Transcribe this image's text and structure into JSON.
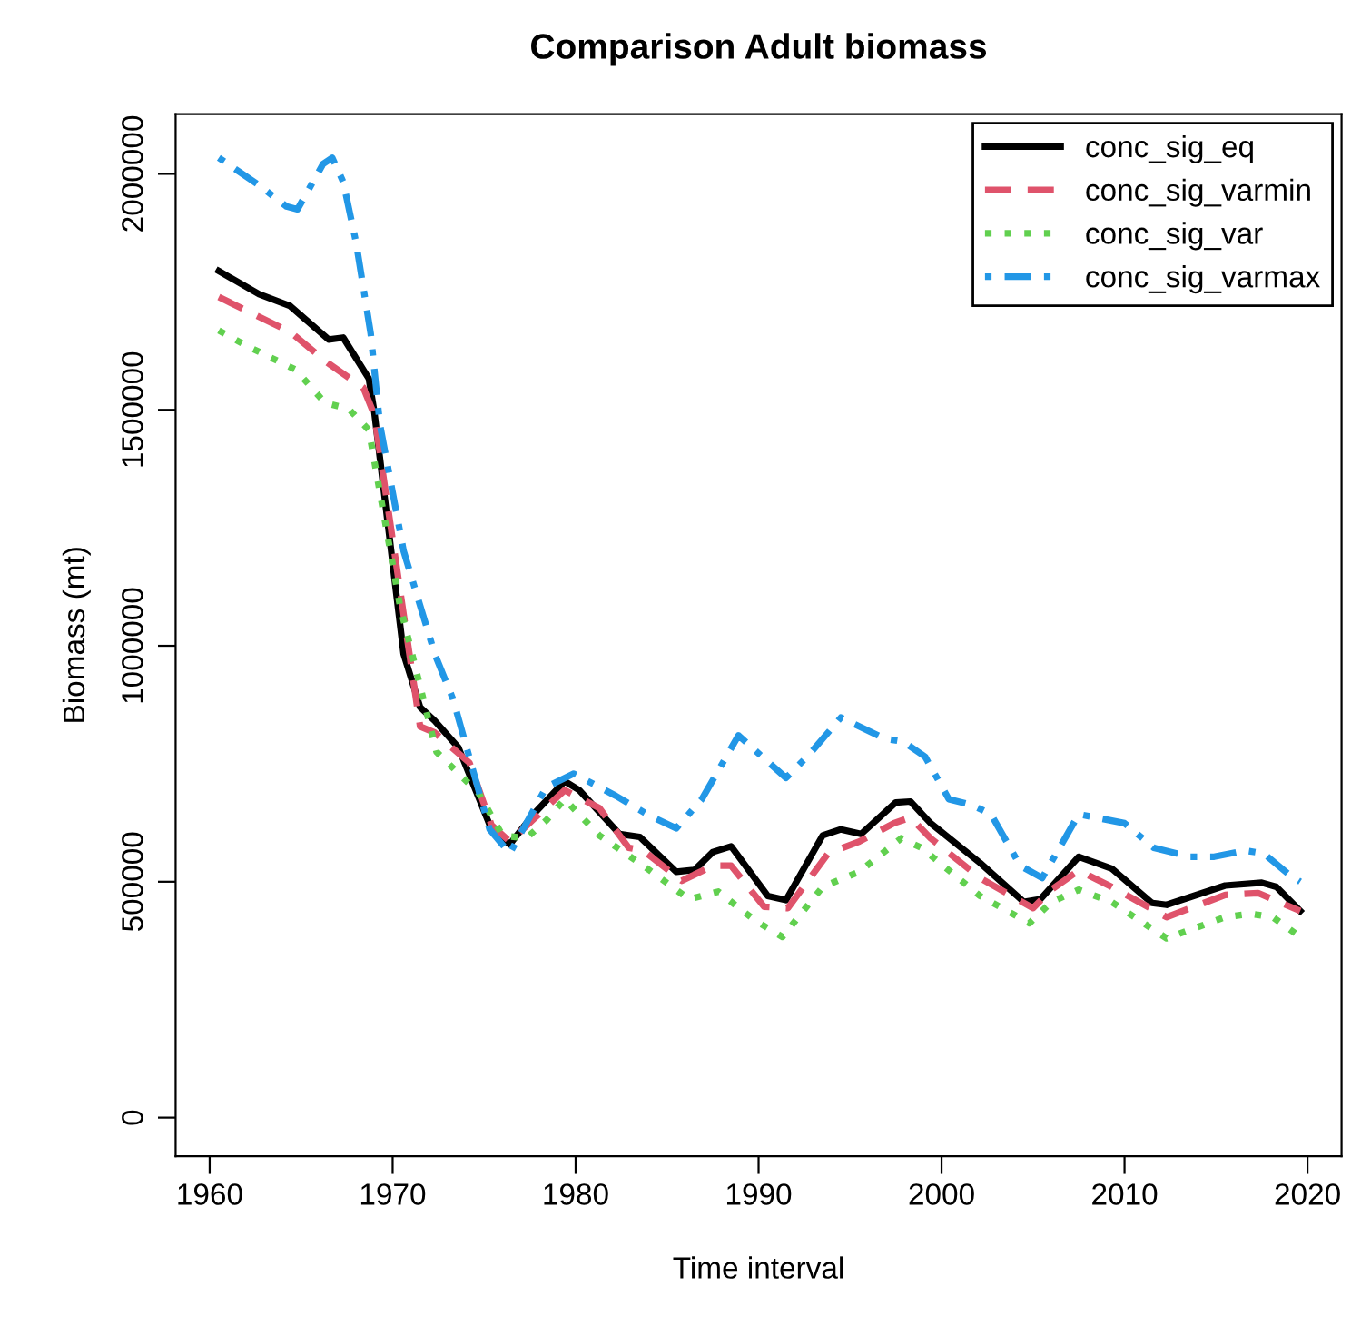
{
  "chart_data": {
    "type": "line",
    "title": "Comparison Adult biomass",
    "xlabel": "Time interval",
    "ylabel": "Biomass (mt)",
    "xlim": [
      1958.14,
      2021.86
    ],
    "ylim": [
      -81800,
      2126800
    ],
    "xticks": [
      1960,
      1970,
      1980,
      1990,
      2000,
      2010,
      2020
    ],
    "yticks": [
      0,
      500000,
      1000000,
      1500000,
      2000000
    ],
    "grid": false,
    "legend": "top right",
    "series": [
      {
        "name": "conc_sig_eq",
        "color": "#000000",
        "line_style": "solid",
        "x": [
          1960.5,
          1962.7,
          1964.4,
          1966.5,
          1967.3,
          1968.7,
          1969.0,
          1970.6,
          1971.5,
          1972.3,
          1973.6,
          1975.4,
          1976.4,
          1977.7,
          1979.4,
          1980.2,
          1982.4,
          1983.5,
          1985.5,
          1986.5,
          1987.5,
          1988.5,
          1990.5,
          1991.5,
          1993.5,
          1994.5,
          1995.6,
          1997.5,
          1998.3,
          1999.4,
          2002.1,
          2004.5,
          2005.4,
          2007.5,
          2009.3,
          2011.5,
          2012.3,
          2015.5,
          2017.5,
          2018.3,
          2019.6
        ],
        "values": [
          1794000,
          1745000,
          1720000,
          1649000,
          1653000,
          1566000,
          1495000,
          983000,
          870000,
          841000,
          784000,
          611000,
          579000,
          643000,
          713000,
          694000,
          601000,
          595000,
          521000,
          525000,
          563000,
          575000,
          470000,
          461000,
          598000,
          611000,
          601000,
          668000,
          670000,
          624000,
          540000,
          457000,
          463000,
          553000,
          528000,
          455000,
          451000,
          492000,
          498000,
          489000,
          438000
        ]
      },
      {
        "name": "conc_sig_varmin",
        "color": "#df536b",
        "line_style": "dashed",
        "x": [
          1960.5,
          1964.4,
          1966.5,
          1968.4,
          1969.0,
          1971.5,
          1972.3,
          1974.2,
          1975.4,
          1976.4,
          1977.8,
          1979.4,
          1981.3,
          1982.9,
          1983.7,
          1985.8,
          1987.5,
          1988.5,
          1990.3,
          1991.6,
          1993.8,
          1995.5,
          1997.4,
          1998.3,
          1999.4,
          2002.1,
          2005.0,
          2006.0,
          2007.5,
          2009.3,
          2012.3,
          2015.5,
          2017.3,
          2019.6
        ],
        "values": [
          1739000,
          1665000,
          1598000,
          1547000,
          1489000,
          829000,
          816000,
          752000,
          620000,
          585000,
          636000,
          694000,
          656000,
          572000,
          566000,
          502000,
          534000,
          534000,
          447000,
          444000,
          560000,
          585000,
          624000,
          636000,
          592000,
          508000,
          444000,
          483000,
          524000,
          489000,
          425000,
          472000,
          476000,
          438000
        ]
      },
      {
        "name": "conc_sig_var",
        "color": "#61d04f",
        "line_style": "dotted",
        "x": [
          1960.5,
          1962.0,
          1964.7,
          1966.3,
          1967.6,
          1968.7,
          1970.4,
          1972.4,
          1974.7,
          1976.0,
          1977.3,
          1978.4,
          1979.4,
          1981.3,
          1983.7,
          1986.2,
          1987.8,
          1989.8,
          1991.3,
          1993.5,
          1995.5,
          1997.8,
          1998.9,
          2002.1,
          2004.8,
          2006.0,
          2007.5,
          2009.3,
          2012.3,
          2015.5,
          2016.9,
          2018.1,
          2019.6
        ],
        "values": [
          1668000,
          1636000,
          1585000,
          1515000,
          1502000,
          1457000,
          1085000,
          775000,
          688000,
          598000,
          592000,
          630000,
          675000,
          598000,
          534000,
          463000,
          479000,
          418000,
          383000,
          489000,
          521000,
          592000,
          572000,
          470000,
          412000,
          457000,
          483000,
          457000,
          380000,
          425000,
          432000,
          425000,
          383000
        ]
      },
      {
        "name": "conc_sig_varmax",
        "color": "#2297e6",
        "line_style": "dashdot",
        "x": [
          1960.5,
          1962.7,
          1964.2,
          1964.8,
          1966.2,
          1966.7,
          1967.3,
          1968.0,
          1968.8,
          1969.3,
          1970.6,
          1972.3,
          1973.3,
          1975.3,
          1976.4,
          1978.4,
          1979.9,
          1982.2,
          1983.9,
          1985.5,
          1986.9,
          1988.9,
          1991.5,
          1992.8,
          1994.5,
          1996.9,
          1997.9,
          1999.1,
          2000.4,
          2001.7,
          2002.7,
          2004.3,
          2005.5,
          2007.5,
          2010.0,
          2011.6,
          2013.6,
          2014.9,
          2016.6,
          2017.6,
          2019.0,
          2019.6
        ],
        "values": [
          2034000,
          1976000,
          1931000,
          1925000,
          2021000,
          2034000,
          1983000,
          1855000,
          1662000,
          1470000,
          1201000,
          983000,
          887000,
          611000,
          560000,
          701000,
          729000,
          682000,
          643000,
          613000,
          675000,
          810000,
          720000,
          771000,
          848000,
          803000,
          797000,
          765000,
          675000,
          662000,
          643000,
          534000,
          508000,
          643000,
          624000,
          572000,
          553000,
          553000,
          566000,
          560000,
          515000,
          500000
        ]
      }
    ]
  }
}
